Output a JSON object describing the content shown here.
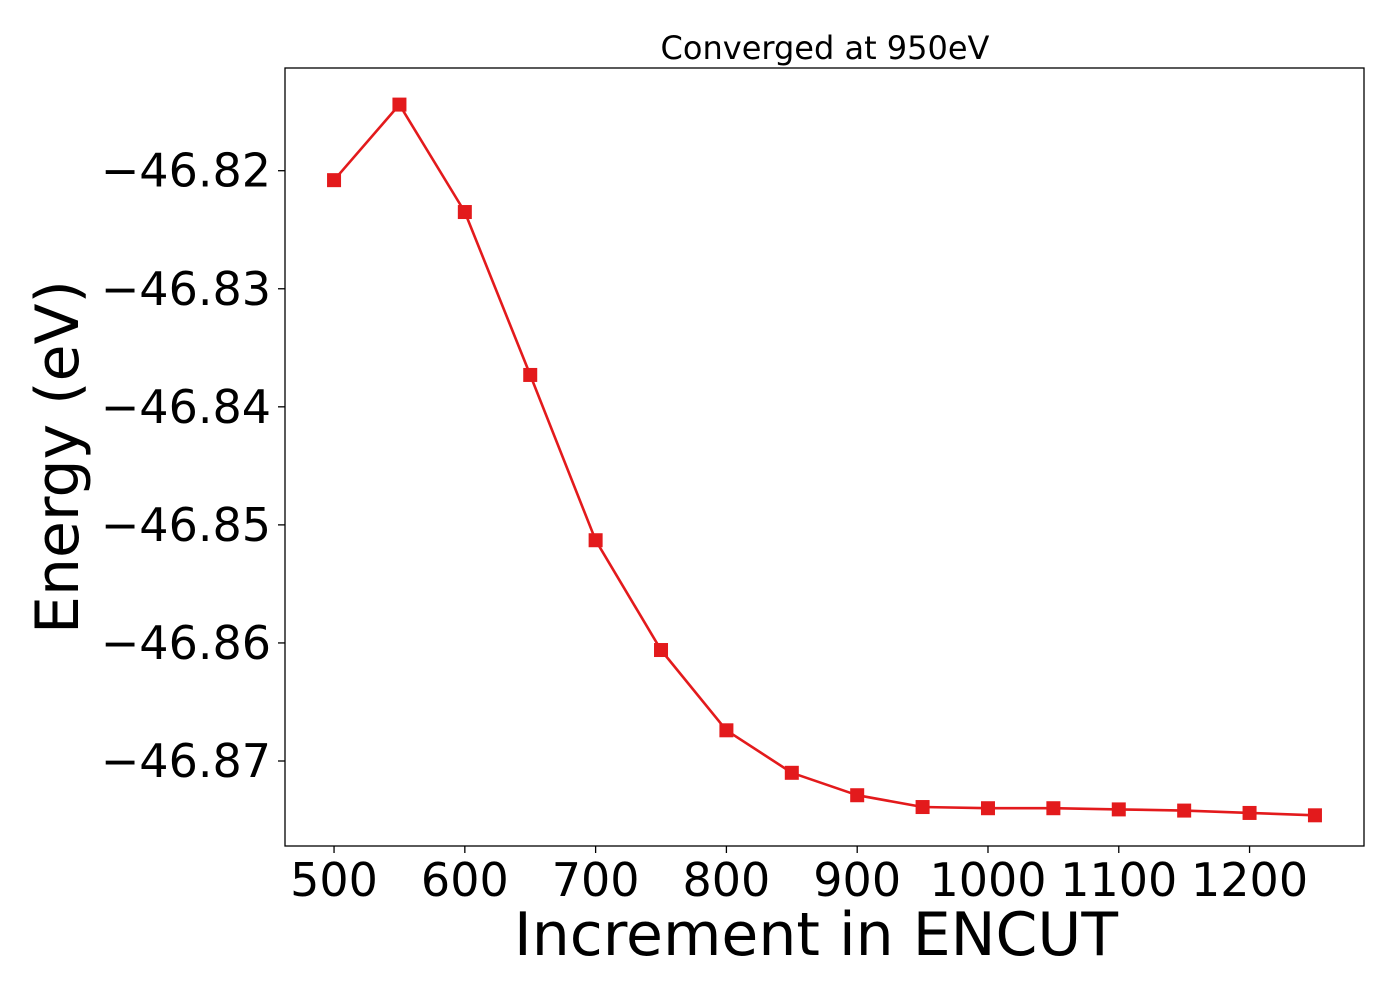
{
  "chart_data": {
    "type": "line",
    "title": "Converged at 950eV",
    "xlabel": "Increment in ENCUT",
    "ylabel": "Energy (eV)",
    "xlim": [
      462.5,
      1287.5
    ],
    "ylim": [
      -46.8772,
      -46.8113
    ],
    "x_ticks": [
      500,
      600,
      700,
      800,
      900,
      1000,
      1100,
      1200
    ],
    "y_ticks": [
      -46.82,
      -46.83,
      -46.84,
      -46.85,
      -46.86,
      -46.87
    ],
    "x_tick_labels": [
      "500",
      "600",
      "700",
      "800",
      "900",
      "1000",
      "1100",
      "1200"
    ],
    "y_tick_labels": [
      "−46.82",
      "−46.83",
      "−46.84",
      "−46.85",
      "−46.86",
      "−46.87"
    ],
    "grid": false,
    "series": [
      {
        "color": "#e31a1c",
        "marker": "square",
        "x": [
          500,
          550,
          600,
          650,
          700,
          750,
          800,
          850,
          900,
          950,
          1000,
          1050,
          1100,
          1150,
          1200,
          1250
        ],
        "y": [
          -46.8208,
          -46.8144,
          -46.8235,
          -46.8373,
          -46.8513,
          -46.8606,
          -46.8674,
          -46.871,
          -46.8729,
          -46.8739,
          -46.874,
          -46.874,
          -46.8741,
          -46.8742,
          -46.8744,
          -46.8746
        ]
      }
    ]
  }
}
